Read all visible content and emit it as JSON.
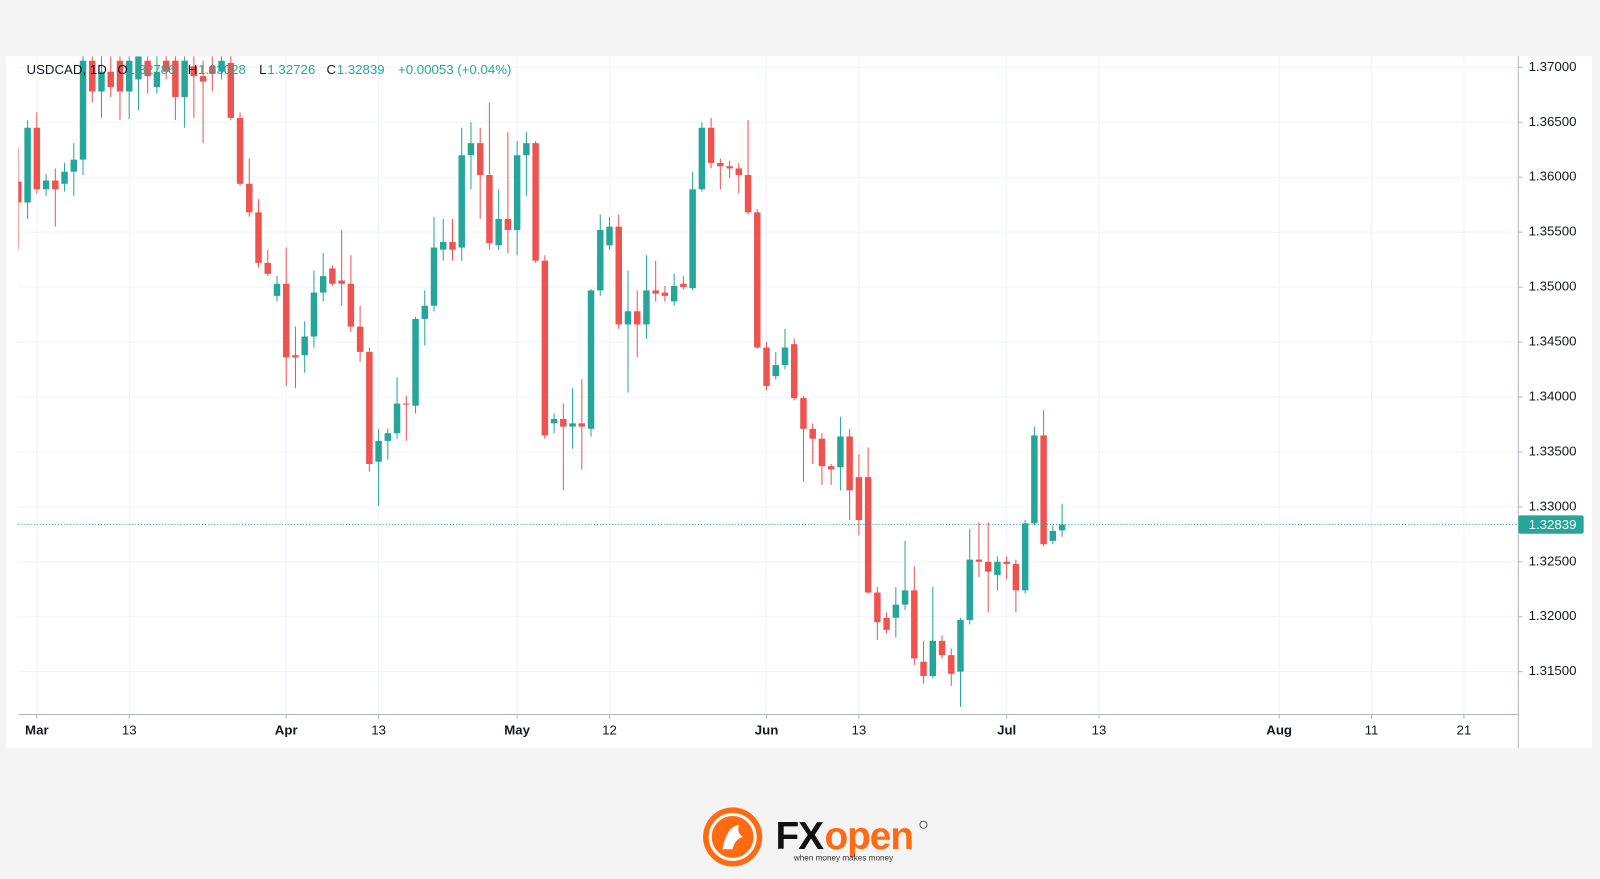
{
  "chart_data": {
    "type": "candlestick",
    "legend_header": {
      "symbol": "USDCAD, 1D",
      "open_label": "O",
      "high_label": "H",
      "low_label": "L",
      "close_label": "C",
      "change": "+0.00053 (+0.04%)"
    },
    "up_color": "#26a69a",
    "down_color": "#ef5350",
    "open": [
      1.3596,
      1.3577,
      1.3645,
      1.3589,
      1.3597,
      1.3594,
      1.3605,
      1.3616,
      1.3706,
      1.3678,
      1.3696,
      1.3706,
      1.3678,
      1.3689,
      1.3706,
      1.3682,
      1.3706,
      1.3706,
      1.3673,
      1.3701,
      1.3692,
      1.3701,
      1.3696,
      1.3704,
      1.3654,
      1.3594,
      1.3568,
      1.3522,
      1.3492,
      1.3503,
      1.3438,
      1.3438,
      1.3455,
      1.3495,
      1.3517,
      1.3506,
      1.3503,
      1.3464,
      1.3441,
      1.3341,
      1.336,
      1.3367,
      1.3394,
      1.3392,
      1.3471,
      1.3483,
      1.3534,
      1.3541,
      1.3536,
      1.362,
      1.3631,
      1.3602,
      1.3538,
      1.3562,
      1.3552,
      1.362,
      1.3631,
      1.3524,
      1.3376,
      1.338,
      1.3373,
      1.3376,
      1.3371,
      1.3497,
      1.3538,
      1.3555,
      1.3466,
      1.3478,
      1.3466,
      1.3497,
      1.3495,
      1.3487,
      1.3503,
      1.3499,
      1.3589,
      1.3645,
      1.3613,
      1.361,
      1.3608,
      1.3602,
      1.3568,
      1.3445,
      1.3419,
      1.3429,
      1.3448,
      1.3399,
      1.3371,
      1.3362,
      1.3337,
      1.3336,
      1.3364,
      1.3327,
      1.3327,
      1.3222,
      1.3199,
      1.3199,
      1.3211,
      1.3224,
      1.3159,
      1.3146,
      1.3178,
      1.3165,
      1.315,
      1.3197,
      1.3252,
      1.325,
      1.3238,
      1.325,
      1.3248,
      1.3224,
      1.3285,
      1.3365,
      1.3269,
      1.32786
    ],
    "high": [
      1.3627,
      1.3652,
      1.3659,
      1.3603,
      1.3608,
      1.3613,
      1.3631,
      1.3715,
      1.3724,
      1.3715,
      1.371,
      1.371,
      1.371,
      1.3715,
      1.3715,
      1.371,
      1.371,
      1.3715,
      1.371,
      1.371,
      1.3706,
      1.371,
      1.3715,
      1.3715,
      1.3659,
      1.3617,
      1.358,
      1.3534,
      1.351,
      1.3536,
      1.3464,
      1.3469,
      1.3515,
      1.3531,
      1.352,
      1.3552,
      1.3529,
      1.3483,
      1.3445,
      1.3371,
      1.3371,
      1.3418,
      1.3401,
      1.3473,
      1.3497,
      1.3564,
      1.3562,
      1.3562,
      1.3645,
      1.365,
      1.3645,
      1.3668,
      1.3589,
      1.3641,
      1.3633,
      1.3641,
      1.3633,
      1.3529,
      1.3385,
      1.3394,
      1.3408,
      1.3416,
      1.3498,
      1.3566,
      1.3564,
      1.3566,
      1.3515,
      1.3497,
      1.3529,
      1.3524,
      1.3501,
      1.3512,
      1.351,
      1.3605,
      1.365,
      1.3654,
      1.3617,
      1.3615,
      1.3613,
      1.3652,
      1.3571,
      1.345,
      1.3441,
      1.3462,
      1.3453,
      1.3401,
      1.3376,
      1.3367,
      1.3339,
      1.3382,
      1.3371,
      1.3348,
      1.3354,
      1.3227,
      1.3204,
      1.3227,
      1.3269,
      1.3246,
      1.3178,
      1.3227,
      1.3183,
      1.3171,
      1.3199,
      1.328,
      1.3286,
      1.3286,
      1.3255,
      1.3255,
      1.3252,
      1.3288,
      1.3373,
      1.3388,
      1.3283,
      1.33028
    ],
    "low": [
      1.3534,
      1.3562,
      1.3585,
      1.3583,
      1.3555,
      1.3587,
      1.3583,
      1.3602,
      1.3668,
      1.3654,
      1.3673,
      1.3652,
      1.3653,
      1.3661,
      1.3676,
      1.3676,
      1.3689,
      1.3652,
      1.3645,
      1.3654,
      1.3631,
      1.3678,
      1.3689,
      1.3652,
      1.3592,
      1.3564,
      1.3518,
      1.351,
      1.3487,
      1.341,
      1.3408,
      1.3422,
      1.3445,
      1.3487,
      1.3501,
      1.3483,
      1.3459,
      1.3432,
      1.3332,
      1.3301,
      1.3343,
      1.3362,
      1.336,
      1.3385,
      1.3447,
      1.3478,
      1.3524,
      1.3524,
      1.3524,
      1.3589,
      1.3562,
      1.3534,
      1.3534,
      1.3531,
      1.3529,
      1.3583,
      1.3522,
      1.3362,
      1.3367,
      1.3315,
      1.3353,
      1.3334,
      1.3364,
      1.3492,
      1.3534,
      1.3462,
      1.3404,
      1.3436,
      1.3453,
      1.3487,
      1.3487,
      1.3483,
      1.3498,
      1.3497,
      1.3587,
      1.3608,
      1.3589,
      1.3599,
      1.3585,
      1.3566,
      1.3444,
      1.3406,
      1.3416,
      1.3425,
      1.3397,
      1.3323,
      1.3339,
      1.332,
      1.332,
      1.3315,
      1.3288,
      1.3274,
      1.3221,
      1.3179,
      1.3185,
      1.3181,
      1.3206,
      1.3156,
      1.3139,
      1.3144,
      1.3162,
      1.3137,
      1.3118,
      1.3193,
      1.3236,
      1.3204,
      1.3224,
      1.3234,
      1.3204,
      1.3221,
      1.3283,
      1.3264,
      1.3266,
      1.32726
    ],
    "close": [
      1.3577,
      1.3645,
      1.3589,
      1.3597,
      1.3589,
      1.3605,
      1.3616,
      1.3706,
      1.3678,
      1.3696,
      1.3682,
      1.3678,
      1.3706,
      1.371,
      1.3692,
      1.3696,
      1.3696,
      1.3673,
      1.3706,
      1.3692,
      1.3687,
      1.3694,
      1.3706,
      1.3654,
      1.3594,
      1.3568,
      1.3522,
      1.3512,
      1.3503,
      1.3436,
      1.3436,
      1.3455,
      1.3495,
      1.351,
      1.3503,
      1.3503,
      1.3464,
      1.3441,
      1.3339,
      1.336,
      1.3367,
      1.3394,
      1.3393,
      1.3471,
      1.3483,
      1.3536,
      1.3541,
      1.3534,
      1.362,
      1.3631,
      1.3602,
      1.354,
      1.3562,
      1.3552,
      1.362,
      1.3631,
      1.3524,
      1.3365,
      1.338,
      1.3373,
      1.3376,
      1.3373,
      1.3497,
      1.3552,
      1.3555,
      1.3466,
      1.3478,
      1.3466,
      1.3497,
      1.3494,
      1.3492,
      1.3501,
      1.35,
      1.3589,
      1.3645,
      1.3613,
      1.361,
      1.3608,
      1.3602,
      1.3568,
      1.3445,
      1.341,
      1.3429,
      1.3445,
      1.3399,
      1.3371,
      1.3362,
      1.3337,
      1.3334,
      1.3364,
      1.3315,
      1.3288,
      1.3222,
      1.3195,
      1.3188,
      1.3211,
      1.3224,
      1.3162,
      1.3146,
      1.3178,
      1.3165,
      1.3148,
      1.3197,
      1.3252,
      1.325,
      1.3241,
      1.325,
      1.3248,
      1.3224,
      1.3285,
      1.3365,
      1.3266,
      1.3278,
      1.32839
    ],
    "xlim": [
      0,
      162.4
    ],
    "xticks": [
      {
        "value": 2,
        "label": "Mar"
      },
      {
        "value": 12,
        "label": "13"
      },
      {
        "value": 29,
        "label": "Apr"
      },
      {
        "value": 39,
        "label": "13"
      },
      {
        "value": 54,
        "label": "May"
      },
      {
        "value": 64,
        "label": "12"
      },
      {
        "value": 81,
        "label": "Jun"
      },
      {
        "value": 91,
        "label": "13"
      },
      {
        "value": 107,
        "label": "Jul"
      },
      {
        "value": 117,
        "label": "13"
      },
      {
        "value": 136.5,
        "label": "Aug"
      },
      {
        "value": 146.5,
        "label": "11"
      },
      {
        "value": 156.5,
        "label": "21"
      }
    ],
    "ylim": [
      1.3111,
      1.371
    ],
    "yticks": [
      {
        "value": 1.315,
        "label": "1.31500"
      },
      {
        "value": 1.32,
        "label": "1.32000"
      },
      {
        "value": 1.325,
        "label": "1.32500"
      },
      {
        "value": 1.33,
        "label": "1.33000"
      },
      {
        "value": 1.335,
        "label": "1.33500"
      },
      {
        "value": 1.34,
        "label": "1.34000"
      },
      {
        "value": 1.345,
        "label": "1.34500"
      },
      {
        "value": 1.35,
        "label": "1.35000"
      },
      {
        "value": 1.355,
        "label": "1.35500"
      },
      {
        "value": 1.36,
        "label": "1.36000"
      },
      {
        "value": 1.365,
        "label": "1.36500"
      },
      {
        "value": 1.37,
        "label": "1.37000"
      }
    ],
    "grid": true
  },
  "brand": {
    "name_fx": "FX",
    "name_open": "open",
    "tagline": "when money makes money"
  }
}
